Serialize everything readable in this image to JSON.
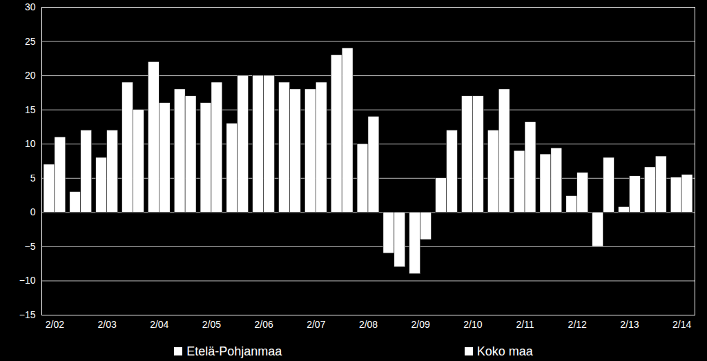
{
  "chart_data": {
    "type": "bar",
    "categories": [
      "2/02",
      null,
      "2/03",
      null,
      "2/04",
      null,
      "2/05",
      null,
      "2/06",
      null,
      "2/07",
      null,
      "2/08",
      null,
      "2/09",
      null,
      "2/10",
      null,
      "2/11",
      null,
      "2/12",
      null,
      "2/13",
      null,
      "2/14"
    ],
    "series": [
      {
        "name": "Etelä-Pohjanmaa",
        "color": "#ffffff",
        "values": [
          7,
          3,
          8,
          19,
          22,
          18,
          16,
          13,
          20,
          19,
          18,
          23,
          10,
          -6,
          -9,
          5,
          17,
          12,
          9,
          8.5,
          2.4,
          -5,
          0.8,
          6.6,
          5.1
        ]
      },
      {
        "name": "Koko maa",
        "color": "#ffffff",
        "values": [
          11,
          12,
          12,
          15,
          16,
          17,
          19,
          20,
          20,
          18,
          19,
          24,
          14,
          -8,
          -4,
          12,
          17,
          18,
          13.2,
          9.4,
          5.8,
          8,
          5.3,
          8.2,
          5.5
        ]
      }
    ],
    "ylim": [
      -15,
      30
    ],
    "yticks": [
      -15,
      -10,
      -5,
      0,
      5,
      10,
      15,
      20,
      25,
      30
    ],
    "grid": true,
    "legend": "bottom"
  }
}
